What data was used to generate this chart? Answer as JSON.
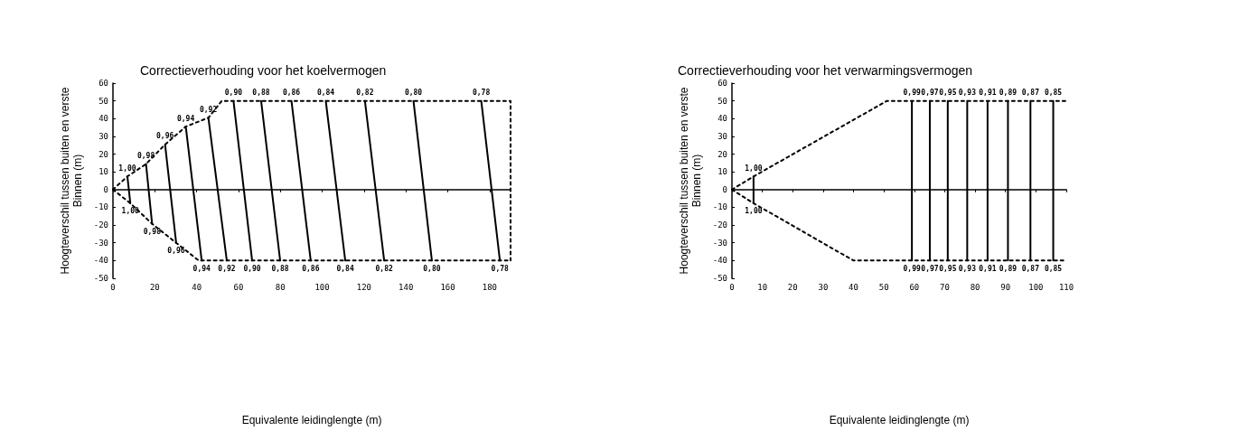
{
  "chart_data": [
    {
      "type": "line",
      "title": "Correctieverhouding voor het koelvermogen",
      "xlabel": "Equivalente leidinglengte (m)",
      "ylabel": "Hoogteverschil tussen buiten en verste Binnen (m)",
      "xlim": [
        0,
        190
      ],
      "xticks": [
        0,
        20,
        40,
        60,
        80,
        100,
        120,
        140,
        160,
        180
      ],
      "ylim": [
        -50,
        60
      ],
      "yticks": [
        -50,
        -40,
        -30,
        -20,
        -10,
        0,
        10,
        20,
        30,
        40,
        50,
        60
      ],
      "marker": "none",
      "series": [
        {
          "color": "#000000",
          "line_style": "dashed",
          "x": [
            0,
            6.9,
            15.8,
            24.9,
            34.8,
            45.6,
            52,
            190,
            190
          ],
          "values": [
            0,
            7.4,
            14.4,
            25.4,
            35.5,
            40.5,
            50,
            50,
            -40
          ]
        },
        {
          "color": "#000000",
          "line_style": "dashed",
          "x": [
            0,
            8.3,
            18.7,
            30.2,
            41,
            190
          ],
          "values": [
            0,
            -7.7,
            -19.3,
            -30,
            -40,
            -40
          ]
        },
        {
          "color": "#000000",
          "line_style": "solid",
          "x": [
            6.9,
            8.3
          ],
          "values": [
            7.4,
            -7.7
          ]
        },
        {
          "color": "#000000",
          "line_style": "solid",
          "x": [
            15.8,
            18.7
          ],
          "values": [
            14.4,
            -19.3
          ]
        },
        {
          "color": "#000000",
          "line_style": "solid",
          "x": [
            24.9,
            30.2
          ],
          "values": [
            25.4,
            -30
          ]
        },
        {
          "color": "#000000",
          "line_style": "solid",
          "x": [
            34.8,
            42.4
          ],
          "values": [
            35.5,
            -40
          ]
        },
        {
          "color": "#000000",
          "line_style": "solid",
          "x": [
            45.6,
            54.4
          ],
          "values": [
            40.5,
            -40
          ]
        },
        {
          "color": "#000000",
          "line_style": "solid",
          "x": [
            57.6,
            66.5
          ],
          "values": [
            50,
            -40
          ]
        },
        {
          "color": "#000000",
          "line_style": "solid",
          "x": [
            70.8,
            79.9
          ],
          "values": [
            50,
            -40
          ]
        },
        {
          "color": "#000000",
          "line_style": "solid",
          "x": [
            85.3,
            94.5
          ],
          "values": [
            50,
            -40
          ]
        },
        {
          "color": "#000000",
          "line_style": "solid",
          "x": [
            101.7,
            111
          ],
          "values": [
            50,
            -40
          ]
        },
        {
          "color": "#000000",
          "line_style": "solid",
          "x": [
            120.4,
            129.6
          ],
          "values": [
            50,
            -40
          ]
        },
        {
          "color": "#000000",
          "line_style": "solid",
          "x": [
            143.6,
            152.4
          ],
          "values": [
            50,
            -40
          ]
        },
        {
          "color": "#000000",
          "line_style": "solid",
          "x": [
            176,
            184.9
          ],
          "values": [
            50,
            -40
          ]
        }
      ],
      "annotations": [
        {
          "text": "1,00",
          "x": 6.9,
          "y": 7.4
        },
        {
          "text": "0,98",
          "x": 15.8,
          "y": 14.4
        },
        {
          "text": "0,96",
          "x": 24.9,
          "y": 25.4
        },
        {
          "text": "0,94",
          "x": 34.8,
          "y": 35.5
        },
        {
          "text": "0,92",
          "x": 45.6,
          "y": 40.5
        },
        {
          "text": "0,90",
          "x": 57.6,
          "y": 50
        },
        {
          "text": "0,88",
          "x": 70.8,
          "y": 50
        },
        {
          "text": "0,86",
          "x": 85.3,
          "y": 50
        },
        {
          "text": "0,84",
          "x": 101.7,
          "y": 50
        },
        {
          "text": "0,82",
          "x": 120.4,
          "y": 50
        },
        {
          "text": "0,80",
          "x": 143.6,
          "y": 50
        },
        {
          "text": "0,78",
          "x": 176,
          "y": 50
        },
        {
          "text": "1,00",
          "x": 8.3,
          "y": -7.7
        },
        {
          "text": "0,98",
          "x": 18.7,
          "y": -19.3
        },
        {
          "text": "0,96",
          "x": 30.2,
          "y": -30
        },
        {
          "text": "0,94",
          "x": 42.4,
          "y": -40
        },
        {
          "text": "0,92",
          "x": 54.4,
          "y": -40
        },
        {
          "text": "0,90",
          "x": 66.5,
          "y": -40
        },
        {
          "text": "0,88",
          "x": 79.9,
          "y": -40
        },
        {
          "text": "0,86",
          "x": 94.5,
          "y": -40
        },
        {
          "text": "0,84",
          "x": 111,
          "y": -40
        },
        {
          "text": "0,82",
          "x": 129.6,
          "y": -40
        },
        {
          "text": "0,80",
          "x": 152.4,
          "y": -40
        },
        {
          "text": "0,78",
          "x": 184.9,
          "y": -40
        }
      ]
    },
    {
      "type": "line",
      "title": "Correctieverhouding voor het verwarmingsvermogen",
      "xlabel": "Equivalente leidinglengte (m)",
      "ylabel": "Hoogteverschil tussen buiten en verste Binnen (m)",
      "xlim": [
        0,
        110
      ],
      "xticks": [
        0,
        10,
        20,
        30,
        40,
        50,
        60,
        70,
        80,
        90,
        100,
        110
      ],
      "ylim": [
        -50,
        60
      ],
      "yticks": [
        -50,
        -40,
        -30,
        -20,
        -10,
        0,
        10,
        20,
        30,
        40,
        50,
        60
      ],
      "marker": "none",
      "series": [
        {
          "color": "#000000",
          "line_style": "dashed",
          "x": [
            0,
            7.1,
            51,
            110
          ],
          "values": [
            0,
            7.4,
            50,
            50
          ]
        },
        {
          "color": "#000000",
          "line_style": "dashed",
          "x": [
            0,
            7.1,
            40,
            110
          ],
          "values": [
            0,
            -7.7,
            -40,
            -40
          ]
        },
        {
          "color": "#000000",
          "line_style": "solid",
          "x": [
            7.1,
            7.1
          ],
          "values": [
            7.4,
            -7.7
          ]
        },
        {
          "color": "#000000",
          "line_style": "solid",
          "x": [
            59.2,
            59.2
          ],
          "values": [
            50,
            -40
          ]
        },
        {
          "color": "#000000",
          "line_style": "solid",
          "x": [
            65.1,
            65.1
          ],
          "values": [
            50,
            -40
          ]
        },
        {
          "color": "#000000",
          "line_style": "solid",
          "x": [
            71,
            71
          ],
          "values": [
            50,
            -40
          ]
        },
        {
          "color": "#000000",
          "line_style": "solid",
          "x": [
            77.4,
            77.4
          ],
          "values": [
            50,
            -40
          ]
        },
        {
          "color": "#000000",
          "line_style": "solid",
          "x": [
            84.1,
            84.1
          ],
          "values": [
            50,
            -40
          ]
        },
        {
          "color": "#000000",
          "line_style": "solid",
          "x": [
            90.8,
            90.8
          ],
          "values": [
            50,
            -40
          ]
        },
        {
          "color": "#000000",
          "line_style": "solid",
          "x": [
            98.2,
            98.2
          ],
          "values": [
            50,
            -40
          ]
        },
        {
          "color": "#000000",
          "line_style": "solid",
          "x": [
            105.7,
            105.7
          ],
          "values": [
            50,
            -40
          ]
        }
      ],
      "annotations": [
        {
          "text": "1,00",
          "x": 7.1,
          "y": 7.4
        },
        {
          "text": "0,99",
          "x": 59.2,
          "y": 50
        },
        {
          "text": "0,97",
          "x": 65.1,
          "y": 50
        },
        {
          "text": "0,95",
          "x": 71,
          "y": 50
        },
        {
          "text": "0,93",
          "x": 77.4,
          "y": 50
        },
        {
          "text": "0,91",
          "x": 84.1,
          "y": 50
        },
        {
          "text": "0,89",
          "x": 90.8,
          "y": 50
        },
        {
          "text": "0,87",
          "x": 98.2,
          "y": 50
        },
        {
          "text": "0,85",
          "x": 105.7,
          "y": 50
        },
        {
          "text": "1,00",
          "x": 7.1,
          "y": -7.7
        },
        {
          "text": "0,99",
          "x": 59.2,
          "y": -40
        },
        {
          "text": "0,97",
          "x": 65.1,
          "y": -40
        },
        {
          "text": "0,95",
          "x": 71,
          "y": -40
        },
        {
          "text": "0,93",
          "x": 77.4,
          "y": -40
        },
        {
          "text": "0,91",
          "x": 84.1,
          "y": -40
        },
        {
          "text": "0,89",
          "x": 90.8,
          "y": -40
        },
        {
          "text": "0,87",
          "x": 98.2,
          "y": -40
        },
        {
          "text": "0,85",
          "x": 105.7,
          "y": -40
        }
      ]
    }
  ]
}
